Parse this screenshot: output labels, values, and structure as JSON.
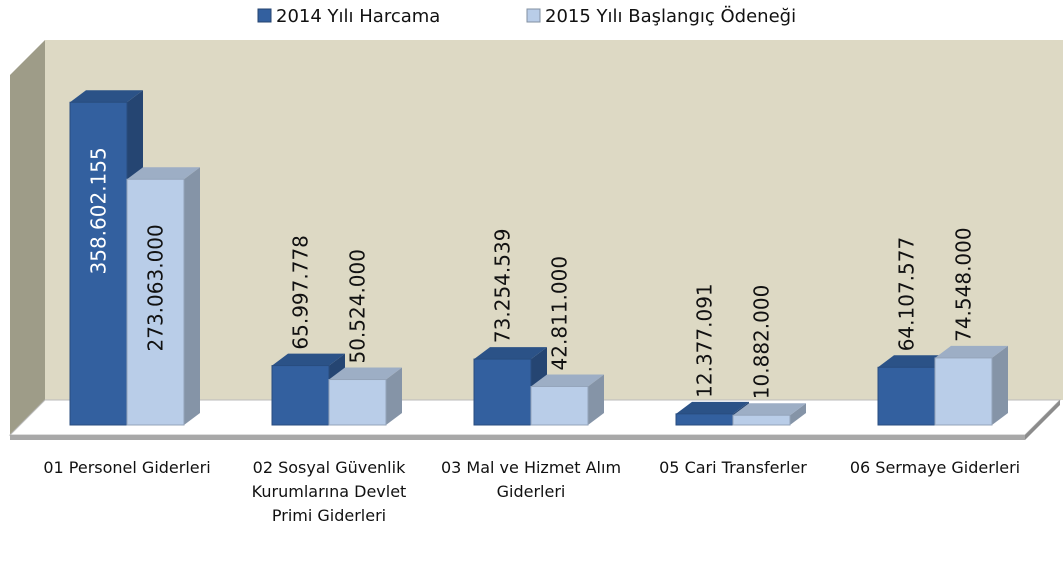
{
  "chart_data": {
    "type": "bar3d",
    "categories": [
      "01 Personel Giderleri",
      "02 Sosyal Güvenlik Kurumlarına Devlet Primi Giderleri",
      "03 Mal ve Hizmet Alım Giderleri",
      "05 Cari Transferler",
      "06 Sermaye Giderleri"
    ],
    "series": [
      {
        "name": "2014 Yılı Harcama",
        "color": "#33609f",
        "values": [
          358602155,
          65997778,
          73254539,
          12377091,
          64107577
        ],
        "value_labels": [
          "358.602.155",
          "65.997.778",
          "73.254.539",
          "12.377.091",
          "64.107.577"
        ]
      },
      {
        "name": "2015 Yılı Başlangıç Ödeneği",
        "color": "#b9cde8",
        "values": [
          273063000,
          50524000,
          42811000,
          10882000,
          74548000
        ],
        "value_labels": [
          "273.063.000",
          "50.524.000",
          "42.811.000",
          "10.882.000",
          "74.548.000"
        ]
      }
    ],
    "ylim": [
      0,
      400000000
    ],
    "legend": "top"
  }
}
